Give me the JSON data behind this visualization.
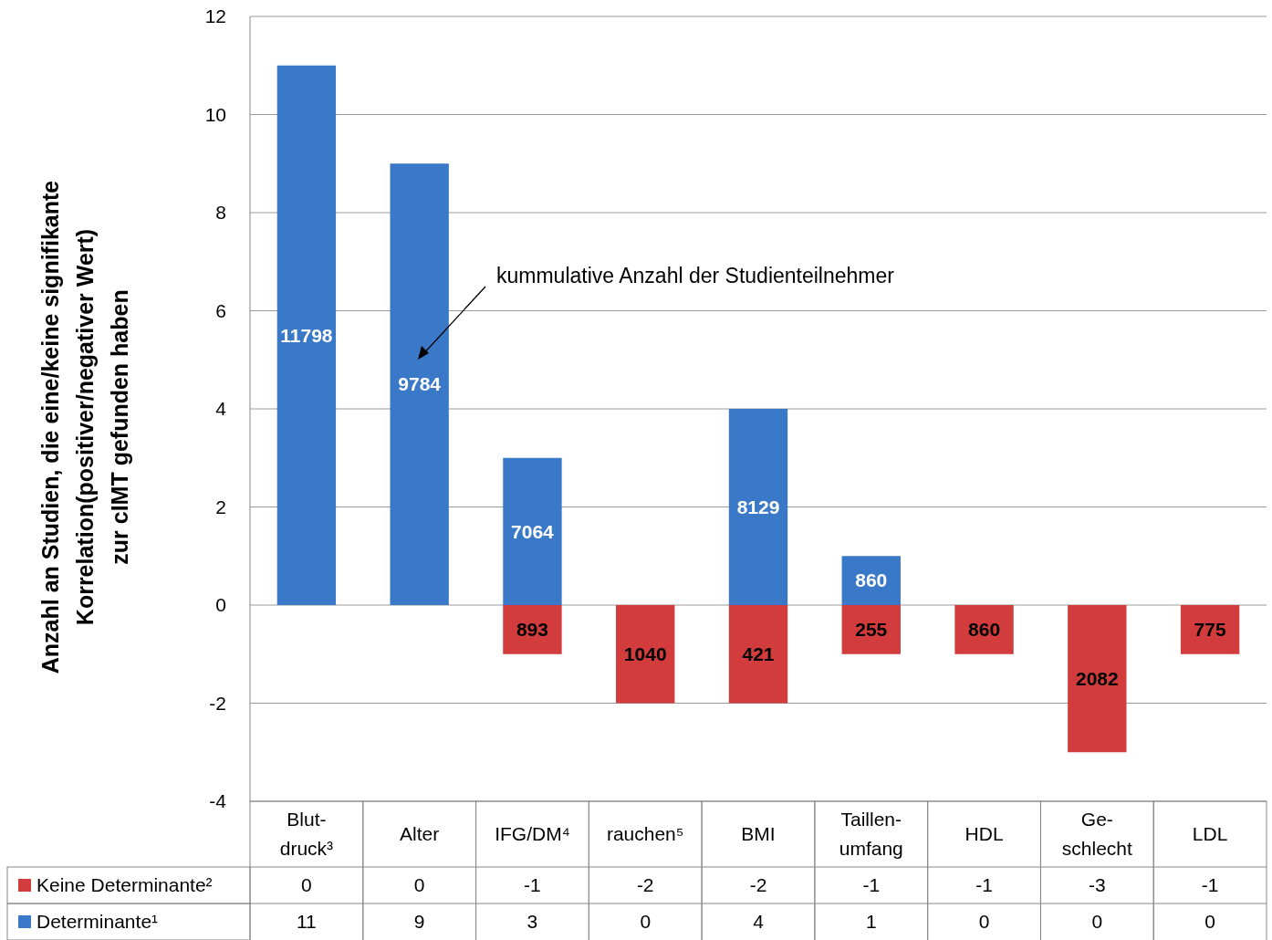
{
  "chart_data": {
    "type": "bar",
    "stacked": true,
    "ylabel": "Anzahl an Studien, die eine/keine signifikante\nKorrelation(positiver/negativer Wert)\nzur cIMT gefunden haben",
    "categories": [
      "Blut-\ndruck³",
      "Alter",
      "IFG/DM⁴",
      "rauchen⁵",
      "BMI",
      "Taillen-\numfang",
      "HDL",
      "Ge-\nschlecht",
      "LDL"
    ],
    "series": [
      {
        "name": "Keine Determinante²",
        "color": "#d23c3c",
        "values": [
          0,
          0,
          -1,
          -2,
          -2,
          -1,
          -1,
          -3,
          -1
        ],
        "value_labels": [
          "0",
          "0",
          "-1",
          "-2",
          "-2",
          "-1",
          "-1",
          "-3",
          "-1"
        ]
      },
      {
        "name": "Determinante¹",
        "color": "#3a78c8",
        "values": [
          11,
          9,
          3,
          0,
          4,
          1,
          0,
          0,
          0
        ],
        "value_labels": [
          "11",
          "9",
          "3",
          "0",
          "4",
          "1",
          "0",
          "0",
          "0"
        ]
      }
    ],
    "ylim": [
      -4,
      12
    ],
    "yticks": [
      -4,
      -2,
      0,
      2,
      4,
      6,
      8,
      10,
      12
    ],
    "grid": "y",
    "legend": "bottom",
    "annotations": [
      "kummulative Anzahl der Studienteilnehmer",
      "893",
      "1040",
      "421",
      "255",
      "860",
      "2082",
      "775",
      "11798",
      "9784",
      "7064",
      "8129",
      "860"
    ]
  }
}
